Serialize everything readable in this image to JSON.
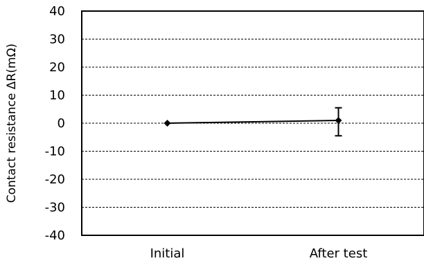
{
  "chart_data": {
    "type": "line",
    "title": "",
    "xlabel": "",
    "ylabel": "Contact resistance ΔR(mΩ)",
    "categories": [
      "Initial",
      "After test"
    ],
    "series": [
      {
        "values": [
          0,
          1
        ],
        "error_low": [
          0,
          5.5
        ],
        "error_high": [
          0,
          4.5
        ]
      }
    ],
    "ylim": [
      -40,
      40
    ],
    "yticks": [
      40,
      30,
      20,
      10,
      0,
      -10,
      -20,
      -30,
      -40
    ],
    "ytick_labels": [
      "40",
      "30",
      "20",
      "10",
      "0",
      "-10",
      "-20",
      "-30",
      "-40"
    ],
    "grid": "horizontal dashed",
    "colors": {
      "line": "#000000",
      "grid": "#000000",
      "background": "#ffffff"
    }
  }
}
